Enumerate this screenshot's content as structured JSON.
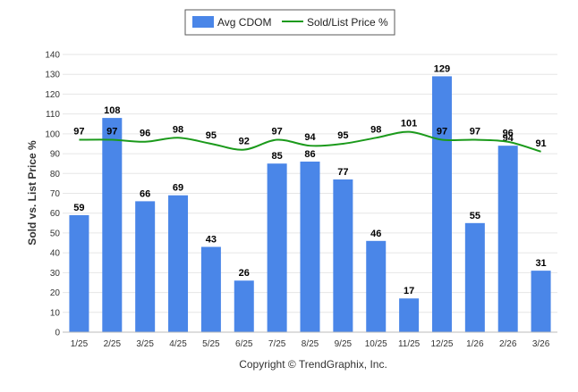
{
  "chart_data": {
    "type": "bar",
    "title": "",
    "xlabel": "",
    "ylabel": "Sold vs. List Price %",
    "ylim": [
      0,
      140
    ],
    "ytick_step": 10,
    "grid": true,
    "legend_position": "top-center",
    "categories": [
      "1/25",
      "2/25",
      "3/25",
      "4/25",
      "5/25",
      "6/25",
      "7/25",
      "8/25",
      "9/25",
      "10/25",
      "11/25",
      "12/25",
      "1/26",
      "2/26",
      "3/26"
    ],
    "series": [
      {
        "name": "Avg CDOM",
        "kind": "bar",
        "color": "#4a86e8",
        "values": [
          59,
          108,
          66,
          69,
          43,
          26,
          85,
          86,
          77,
          46,
          17,
          129,
          55,
          94,
          31
        ]
      },
      {
        "name": "Sold/List Price %",
        "kind": "line",
        "color": "#1b9a1b",
        "values": [
          97,
          97,
          96,
          98,
          95,
          92,
          97,
          94,
          95,
          98,
          101,
          97,
          97,
          96,
          91
        ]
      }
    ],
    "footer": "Copyright © TrendGraphix, Inc."
  }
}
